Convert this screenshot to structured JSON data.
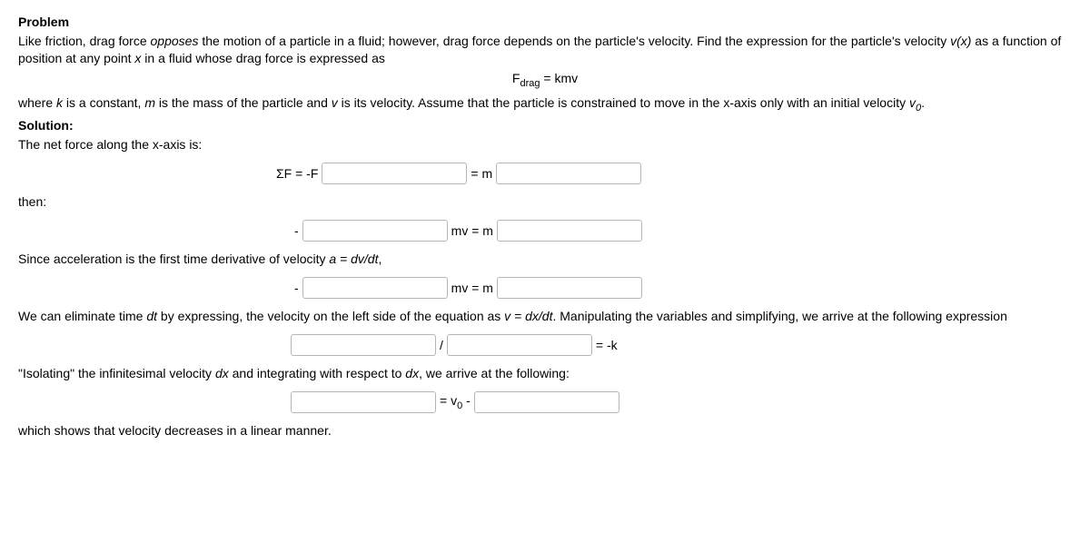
{
  "problem": {
    "heading": "Problem",
    "line1_a": "Like friction, drag force ",
    "line1_b": "opposes",
    "line1_c": " the motion of a particle in a fluid; however, drag force depends on the particle's velocity. Find the expression for the particle's velocity ",
    "line1_d": "v(x)",
    "line1_e": " as a function of position at any point ",
    "line1_f": "x",
    "line1_g": " in a fluid whose drag force is expressed as",
    "eq_lhs": "F",
    "eq_sub": "drag",
    "eq_rhs": " = kmv",
    "line2_a": "where ",
    "line2_b": "k",
    "line2_c": " is a constant, ",
    "line2_d": "m",
    "line2_e": " is the mass of the particle and ",
    "line2_f": "v",
    "line2_g": " is its velocity. Assume that the particle is constrained to move in the x-axis only with an initial velocity ",
    "line2_h": "v",
    "line2_i": "0",
    "line2_j": "."
  },
  "solution": {
    "heading": "Solution:",
    "net_force": "The net force along the x-axis is:",
    "eq1_pre": "ΣF = -F",
    "eq1_mid": "= m",
    "then": "then:",
    "eq2_pre": "-",
    "eq2_mid": "mv = m",
    "accel_line_a": "Since acceleration is the first time derivative of velocity ",
    "accel_line_b": "a = dv/dt",
    "accel_line_c": ",",
    "eq3_pre": "-",
    "eq3_mid": "mv = m",
    "elim_a": "We can eliminate time ",
    "elim_b": "dt",
    "elim_c": " by expressing, the velocity on the left side of the equation as ",
    "elim_d": "v = dx/dt",
    "elim_e": ". Manipulating the variables and simplifying, we arrive at the following expression",
    "eq4_mid": "/",
    "eq4_end": "= -k",
    "isolate_a": "\"Isolating\" the infinitesimal velocity ",
    "isolate_b": "dx",
    "isolate_c": " and integrating with respect to ",
    "isolate_d": "dx",
    "isolate_e": ", we arrive at the following:",
    "eq5_mid_a": "= v",
    "eq5_mid_b": "0",
    "eq5_mid_c": " -",
    "final": "which shows that velocity decreases in a linear manner."
  }
}
